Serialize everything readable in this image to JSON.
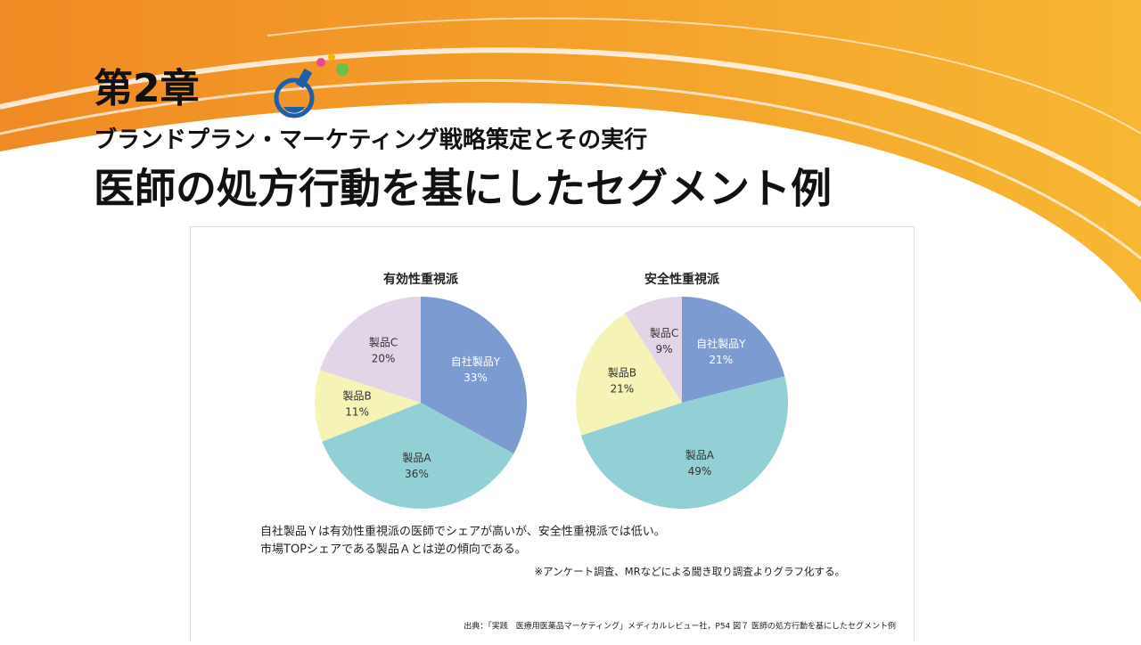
{
  "header": {
    "chapter": "第2章",
    "subtitle": "ブランドプラン・マーケティング戦略策定とその実行",
    "title": "医師の処方行動を基にしたセグメント例"
  },
  "chart_data": [
    {
      "type": "pie",
      "title": "有効性重視派",
      "categories": [
        "自社製品Y",
        "製品A",
        "製品B",
        "製品C"
      ],
      "values": [
        33,
        36,
        11,
        20
      ],
      "value_labels": [
        "33%",
        "36%",
        "11%",
        "20%"
      ],
      "colors": [
        "#7b9bd1",
        "#93d0d6",
        "#f5f3b5",
        "#e3d5e8"
      ]
    },
    {
      "type": "pie",
      "title": "安全性重視派",
      "categories": [
        "自社製品Y",
        "製品A",
        "製品B",
        "製品C"
      ],
      "values": [
        21,
        49,
        21,
        9
      ],
      "value_labels": [
        "21%",
        "49%",
        "21%",
        "9%"
      ],
      "colors": [
        "#7b9bd1",
        "#93d0d6",
        "#f5f3b5",
        "#e3d5e8"
      ]
    }
  ],
  "notes": {
    "summary": [
      "自社製品Ｙは有効性重視派の医師でシェアが高いが、安全性重視派では低い。",
      "市場TOPシェアである製品Ａとは逆の傾向である。"
    ],
    "footnote": "※アンケート調査、MRなどによる聞き取り調査よりグラフ化する。",
    "source": "出典：「実践　医療用医薬品マーケティング」メディカルレビュー社，P54 図７ 医師の処方行動を基にしたセグメント例"
  }
}
